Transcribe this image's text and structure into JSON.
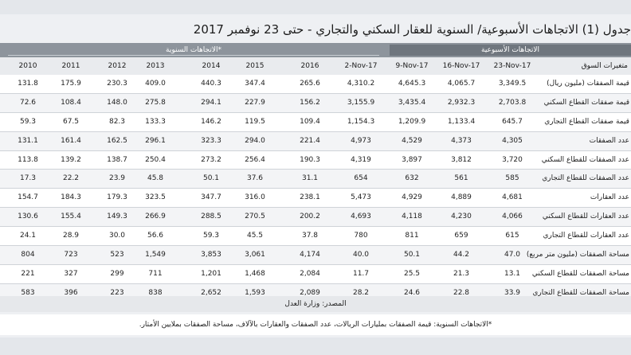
{
  "title": "جدول (1) الاتجاهات الأسبوعية/ السنوية للعقار السكني والتجاري - حتى 23 نوفمبر 2017",
  "headers": {
    "weekly_group": "الاتجاهات الأسبوعية",
    "annual_group": "الاتجاهات السنوية*",
    "label_col": "متغيرات السوق",
    "columns": [
      "23-Nov-17",
      "16-Nov-17",
      "9-Nov-17",
      "2-Nov-17",
      "2016",
      "2015",
      "2014",
      "2013",
      "2012",
      "2011",
      "2010"
    ]
  },
  "rows": [
    {
      "label": "قيمة الصفقات (مليون ريال)",
      "values": [
        "3,349.5",
        "4,065.7",
        "4,645.3",
        "4,310.2",
        "265.6",
        "347.4",
        "440.3",
        "409.0",
        "230.3",
        "175.9",
        "131.8"
      ]
    },
    {
      "label": "قيمة صفقات القطاع السكني",
      "values": [
        "2,703.8",
        "2,932.3",
        "3,435.4",
        "3,155.9",
        "156.2",
        "227.9",
        "294.1",
        "275.8",
        "148.0",
        "108.4",
        "72.6"
      ]
    },
    {
      "label": "قيمة صفقات القطاع التجاري",
      "values": [
        "645.7",
        "1,133.4",
        "1,209.9",
        "1,154.3",
        "109.4",
        "119.5",
        "146.2",
        "133.3",
        "82.3",
        "67.5",
        "59.3"
      ]
    },
    {
      "label": "عدد الصفقات",
      "values": [
        "4,305",
        "4,373",
        "4,529",
        "4,973",
        "221.4",
        "294.0",
        "323.3",
        "296.1",
        "162.5",
        "161.4",
        "131.1"
      ]
    },
    {
      "label": "عدد الصفقات للقطاع السكني",
      "values": [
        "3,720",
        "3,812",
        "3,897",
        "4,319",
        "190.3",
        "256.4",
        "273.2",
        "250.4",
        "138.7",
        "139.2",
        "113.8"
      ]
    },
    {
      "label": "عدد الصفقات للقطاع التجاري",
      "values": [
        "585",
        "561",
        "632",
        "654",
        "31.1",
        "37.6",
        "50.1",
        "45.8",
        "23.9",
        "22.2",
        "17.3"
      ]
    },
    {
      "label": "عدد العقارات",
      "values": [
        "4,681",
        "4,889",
        "4,929",
        "5,473",
        "238.1",
        "316.0",
        "347.7",
        "323.5",
        "179.3",
        "184.3",
        "154.7"
      ]
    },
    {
      "label": "عدد العقارات للقطاع السكني",
      "values": [
        "4,066",
        "4,230",
        "4,118",
        "4,693",
        "200.2",
        "270.5",
        "288.5",
        "266.9",
        "149.3",
        "155.4",
        "130.6"
      ]
    },
    {
      "label": "عدد العقارات للقطاع التجاري",
      "values": [
        "615",
        "659",
        "811",
        "780",
        "37.8",
        "45.5",
        "59.3",
        "56.6",
        "30.0",
        "28.9",
        "24.1"
      ]
    },
    {
      "label": "مساحة الصفقات (مليون متر مربع)",
      "values": [
        "47.0",
        "44.2",
        "50.1",
        "40.0",
        "4,174",
        "3,061",
        "3,853",
        "1,549",
        "523",
        "723",
        "804"
      ]
    },
    {
      "label": "مساحة الصفقات للقطاع السكني",
      "values": [
        "13.1",
        "21.3",
        "25.5",
        "11.7",
        "2,084",
        "1,468",
        "1,201",
        "711",
        "299",
        "327",
        "221"
      ]
    },
    {
      "label": "مساحة الصفقات للقطاع التجاري",
      "values": [
        "33.9",
        "22.8",
        "24.6",
        "28.2",
        "2,089",
        "1,593",
        "2,652",
        "838",
        "223",
        "396",
        "583"
      ]
    }
  ],
  "source": "المصدر: وزارة العدل",
  "footnote": "*الاتجاهات السنوية: قيمة الصفقات بمليارات الريالات، عدد الصفقات والعقارات بالآلاف، مساحة الصفقات بملايين الأمتار."
}
